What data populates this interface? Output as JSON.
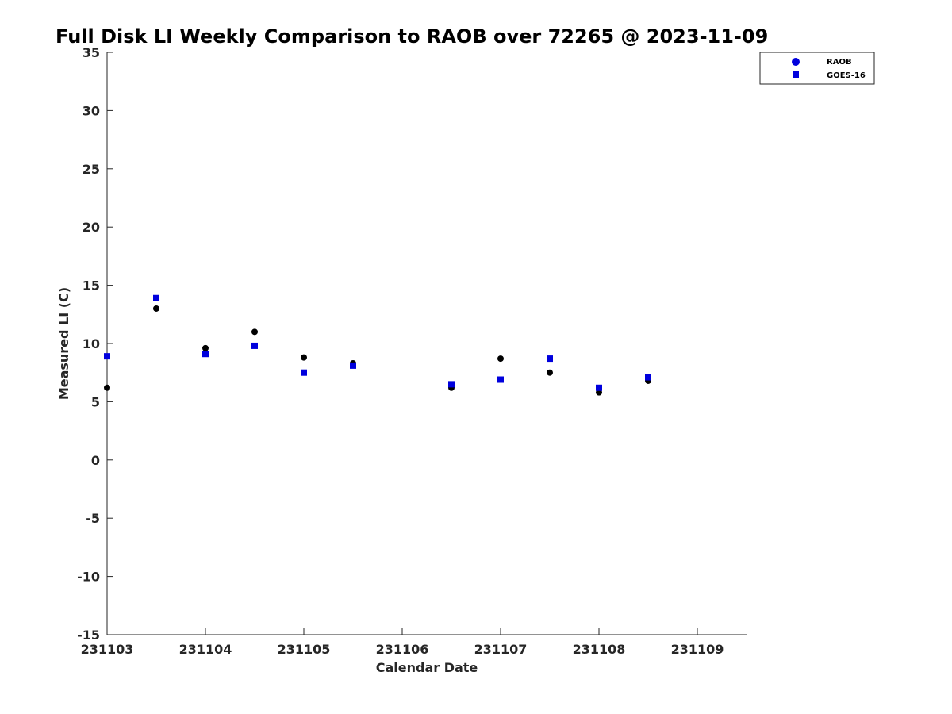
{
  "chart_data": {
    "type": "scatter",
    "title": "Full Disk LI Weekly Comparison to RAOB over 72265 @ 2023-11-09",
    "xlabel": "Calendar Date",
    "ylabel": "Measured LI (C)",
    "xlim": [
      0,
      6.5
    ],
    "ylim": [
      -15,
      35
    ],
    "x_ticks": [
      0,
      1,
      2,
      3,
      4,
      5,
      6
    ],
    "x_tick_labels": [
      "231103",
      "231104",
      "231105",
      "231106",
      "231107",
      "231108",
      "231109"
    ],
    "y_ticks": [
      -15,
      -10,
      -5,
      0,
      5,
      10,
      15,
      20,
      25,
      30,
      35
    ],
    "y_tick_labels": [
      "-15",
      "-10",
      "-5",
      "0",
      "5",
      "10",
      "15",
      "20",
      "25",
      "30",
      "35"
    ],
    "legend_position": "top-right",
    "grid": false,
    "series": [
      {
        "name": "RAOB",
        "marker": "circle",
        "color": "#000000",
        "legend_color": "#0000dd",
        "x": [
          0,
          0.5,
          1,
          1.5,
          2,
          2.5,
          3.5,
          4,
          4.5,
          5,
          5.5
        ],
        "y": [
          6.2,
          13.0,
          9.6,
          11.0,
          8.8,
          8.3,
          6.2,
          8.7,
          7.5,
          5.8,
          6.8
        ]
      },
      {
        "name": "GOES-16",
        "marker": "square",
        "color": "#0000dd",
        "legend_color": "#0000dd",
        "x": [
          0,
          0.5,
          1,
          1.5,
          2,
          2.5,
          3.5,
          4,
          4.5,
          5,
          5.5
        ],
        "y": [
          8.9,
          13.9,
          9.1,
          9.8,
          7.5,
          8.1,
          6.5,
          6.9,
          8.7,
          6.2,
          7.1
        ]
      }
    ]
  }
}
